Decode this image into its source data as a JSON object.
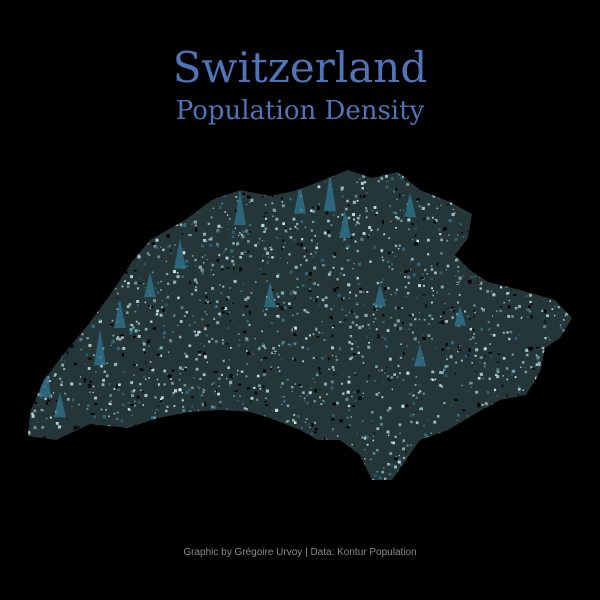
{
  "title": "Switzerland",
  "subtitle": "Population Density",
  "credit": "Graphic by Grégoire Urvoy | Data: Kontur Population",
  "colors": {
    "background": "#000000",
    "title": "#4f74b8",
    "density_low": "#c9e6e4",
    "density_mid": "#7fb2b8",
    "density_high": "#2f6f86",
    "credit": "#8a8a8a"
  }
}
